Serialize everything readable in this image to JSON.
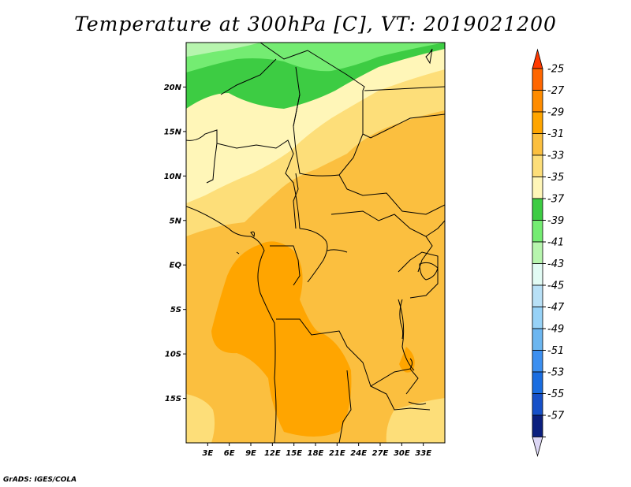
{
  "title": "Temperature at 300hPa [C], VT: 2019021200",
  "footer": "GrADS: IGES/COLA",
  "map": {
    "lon_range": [
      0,
      36
    ],
    "lat_range": [
      -20,
      25
    ],
    "lat_ticks": [
      {
        "value": 20,
        "label": "20N"
      },
      {
        "value": 15,
        "label": "15N"
      },
      {
        "value": 10,
        "label": "10N"
      },
      {
        "value": 5,
        "label": "5N"
      },
      {
        "value": 0,
        "label": "EQ"
      },
      {
        "value": -5,
        "label": "5S"
      },
      {
        "value": -10,
        "label": "10S"
      },
      {
        "value": -15,
        "label": "15S"
      }
    ],
    "lon_ticks": [
      {
        "value": 3,
        "label": "3E"
      },
      {
        "value": 6,
        "label": "6E"
      },
      {
        "value": 9,
        "label": "9E"
      },
      {
        "value": 12,
        "label": "12E"
      },
      {
        "value": 15,
        "label": "15E"
      },
      {
        "value": 18,
        "label": "18E"
      },
      {
        "value": 21,
        "label": "21E"
      },
      {
        "value": 24,
        "label": "24E"
      },
      {
        "value": 27,
        "label": "27E"
      },
      {
        "value": 30,
        "label": "30E"
      },
      {
        "value": 33,
        "label": "33E"
      }
    ]
  },
  "colorbar": {
    "levels": [
      {
        "label": "-25",
        "color": "#ff6600"
      },
      {
        "label": "-27",
        "color": "#ff8c00"
      },
      {
        "label": "-29",
        "color": "#ffa500"
      },
      {
        "label": "-31",
        "color": "#fbbf3f"
      },
      {
        "label": "-33",
        "color": "#fdde79"
      },
      {
        "label": "-35",
        "color": "#fff6b8"
      },
      {
        "label": "-37",
        "color": "#3dcc43"
      },
      {
        "label": "-39",
        "color": "#74ec72"
      },
      {
        "label": "-41",
        "color": "#b7f5ae"
      },
      {
        "label": "-43",
        "color": "#e2fbf4"
      },
      {
        "label": "-45",
        "color": "#b8e0f6"
      },
      {
        "label": "-47",
        "color": "#97d2f7"
      },
      {
        "label": "-49",
        "color": "#6cb6f0"
      },
      {
        "label": "-51",
        "color": "#3c8ff0"
      },
      {
        "label": "-53",
        "color": "#1a6de0"
      },
      {
        "label": "-55",
        "color": "#1650c8"
      },
      {
        "label": "-57",
        "color": "#0b1f7e"
      }
    ],
    "top_triangle_color": "#ff3a00",
    "bottom_triangle_color": "#dcd6f4"
  }
}
